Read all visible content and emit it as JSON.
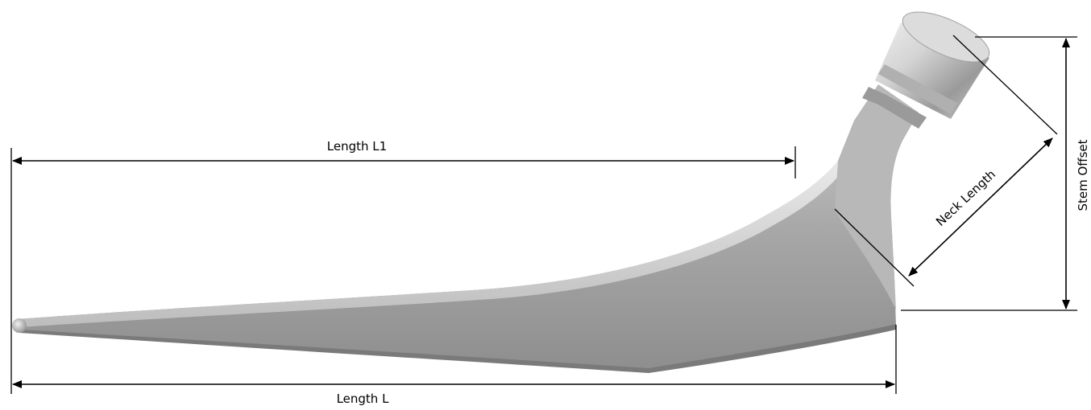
{
  "labels": {
    "length_l1": "Length L1",
    "length_l": "Length L",
    "neck_length": "Neck Length",
    "stem_offset": "Stem Offset"
  },
  "colors": {
    "stem_fill": "#a9a9a9",
    "stem_highlight": "#ececec",
    "stem_shadow": "#6e6e6e",
    "dimension_lines": "#000000"
  },
  "icons": {
    "arrowhead": "arrowhead-icon"
  }
}
